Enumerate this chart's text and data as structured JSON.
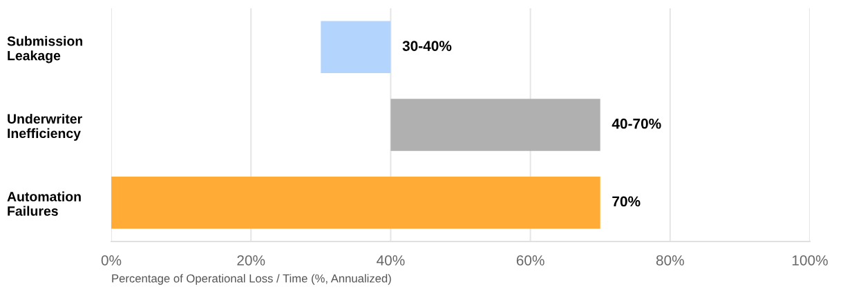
{
  "chart_data": {
    "type": "bar",
    "orientation": "horizontal",
    "categories": [
      "Submission\nLeakage",
      "Underwriter\nInefficiency",
      "Automation\nFailures"
    ],
    "values": [
      10,
      30,
      70
    ],
    "base": [
      30,
      40,
      0
    ],
    "colors": [
      "#b3d4fc",
      "#b0b0b0",
      "#ffab36"
    ],
    "annotations": [
      "30-40%",
      "40-70%",
      "70%"
    ],
    "xlabel": "Percentage of Operational Loss / Time (%, Annualized)",
    "xlim": [
      0,
      100
    ],
    "xticks": [
      {
        "value": 0,
        "label": "0%"
      },
      {
        "value": 20,
        "label": "20%"
      },
      {
        "value": 40,
        "label": "40%"
      },
      {
        "value": 60,
        "label": "60%"
      },
      {
        "value": 80,
        "label": "80%"
      },
      {
        "value": 100,
        "label": "100%"
      }
    ],
    "grid": "x",
    "legend": false
  }
}
